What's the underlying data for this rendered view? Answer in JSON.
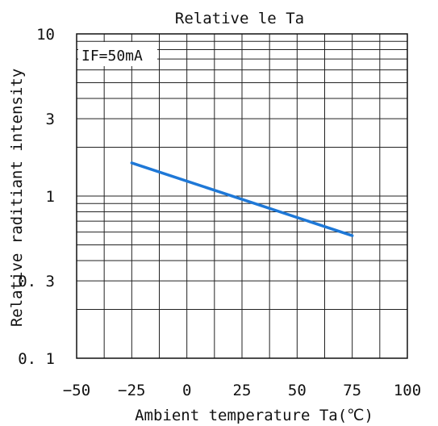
{
  "chart_data": {
    "type": "line",
    "title": "Relative le Ta",
    "xlabel": "Ambient temperature Ta(℃)",
    "ylabel": "Relative raditiant intensity",
    "annotation": "IF=50mA",
    "x_scale": "linear",
    "y_scale": "log",
    "xlim": [
      -50,
      100
    ],
    "ylim": [
      0.1,
      10
    ],
    "x_ticks": [
      -50,
      -25,
      0,
      25,
      50,
      75,
      100
    ],
    "x_tick_labels": [
      "−50",
      "−25",
      "0",
      "25",
      "50",
      "75",
      "100"
    ],
    "y_ticks": [
      0.1,
      0.3,
      1,
      3,
      10
    ],
    "y_tick_labels": [
      "0. 1",
      "0. 3",
      "1",
      "3",
      "10"
    ],
    "grid": true,
    "series": [
      {
        "color": "#1e78d7",
        "x": [
          -25,
          75
        ],
        "y": [
          1.6,
          0.57
        ]
      }
    ]
  }
}
